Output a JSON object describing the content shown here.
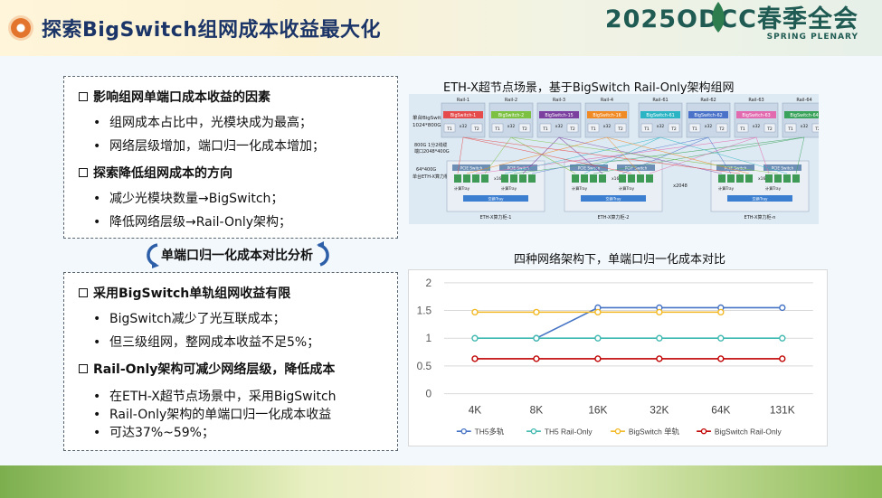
{
  "header": {
    "title": "探索BigSwitch组网成本收益最大化",
    "logo": {
      "main": "2025ODCC春季全会",
      "sub": "SPRING PLENARY"
    }
  },
  "left": {
    "box1": {
      "sections": [
        {
          "heading": "影响组网单端口成本收益的因素",
          "bullets": [
            "组网成本占比中，光模块成为最高；",
            "网络层级增加，端口归一化成本增加；"
          ]
        },
        {
          "heading": "探索降低组网成本的方向",
          "bullets": [
            "减少光模块数量→BigSwitch；",
            "降低网络层级→Rail-Only架构；"
          ]
        }
      ]
    },
    "compare_title": "单端口归一化成本对比分析",
    "box2": {
      "sections": [
        {
          "heading": "采用BigSwitch单轨组网收益有限",
          "bullets": [
            "BigSwitch减少了光互联成本；",
            "但三级组网，整网成本收益不足5%；"
          ]
        },
        {
          "heading": "Rail-Only架构可减少网络层级，降低成本",
          "bullets": [
            "在ETH-X超节点场景中，采用BigSwitch",
            "Rail-Only架构的单端口归一化成本收益",
            "可达37%~59%；"
          ]
        }
      ]
    }
  },
  "diagram": {
    "title": "ETH-X超节点场景，基于BigSwitch Rail-Only架构组网",
    "rail_labels": [
      "Rail-1",
      "Rail-2",
      "Rail-3",
      "Rail-4",
      "Rail-61",
      "Rail-62",
      "Rail-63",
      "Rail-64"
    ],
    "switch_labels": [
      "BigSwitch-1",
      "BigSwitch-2",
      "BigSwitch-15",
      "BigSwitch-16",
      "BigSwitch-61",
      "BigSwitch-62",
      "BigSwitch-63",
      "BigSwitch-64"
    ],
    "switch_colors": [
      "#e54b4b",
      "#7cc142",
      "#7b3fa0",
      "#f08a24",
      "#2bb5c4",
      "#4a72c9",
      "#e26bb0",
      "#3aa35b"
    ],
    "t1_label": "T1",
    "t2_label": "T2",
    "x32_label": "x32",
    "left_label_1": "单台BigSwitch",
    "left_label_2": "1024*800G",
    "left_label_3": "800G 1分2线缆",
    "left_label_4": "端口2048*400G",
    "left_label_5": "64*400G",
    "left_label_6": "单台ETH-X算力柜",
    "node_labels": [
      "ETH-X算力柜-1",
      "ETH-X算力柜-2",
      "ETH-X算力柜-n"
    ],
    "x2048_label": "x2048",
    "x16_label": "x16",
    "pcie_label": "PCIE Switch",
    "tray_label": "计算Tray",
    "tray_bar_label": "交换Tray"
  },
  "chart_title": "四种网络架构下，单端口归一化成本对比",
  "chart_data": {
    "type": "line",
    "categories": [
      "4K",
      "8K",
      "16K",
      "32K",
      "64K",
      "131K"
    ],
    "ylim": [
      0,
      2
    ],
    "yticks": [
      "0",
      "0.5",
      "1",
      "1.5",
      "2"
    ],
    "grid": true,
    "legend_position": "bottom",
    "series": [
      {
        "name": "TH5多轨",
        "color": "#4472c4",
        "values": [
          null,
          1.0,
          1.55,
          1.55,
          1.55,
          1.55
        ]
      },
      {
        "name": "TH5 Rail-Only",
        "color": "#3fb8b0",
        "values": [
          1.0,
          1.0,
          1.0,
          1.0,
          1.0,
          1.0
        ]
      },
      {
        "name": "BigSwitch 单轨",
        "color": "#f2b824",
        "values": [
          1.47,
          1.47,
          1.47,
          1.47,
          1.47,
          null
        ]
      },
      {
        "name": "BigSwitch Rail-Only",
        "color": "#c00000",
        "values": [
          0.63,
          0.63,
          0.63,
          0.63,
          0.63,
          0.63
        ]
      }
    ]
  }
}
